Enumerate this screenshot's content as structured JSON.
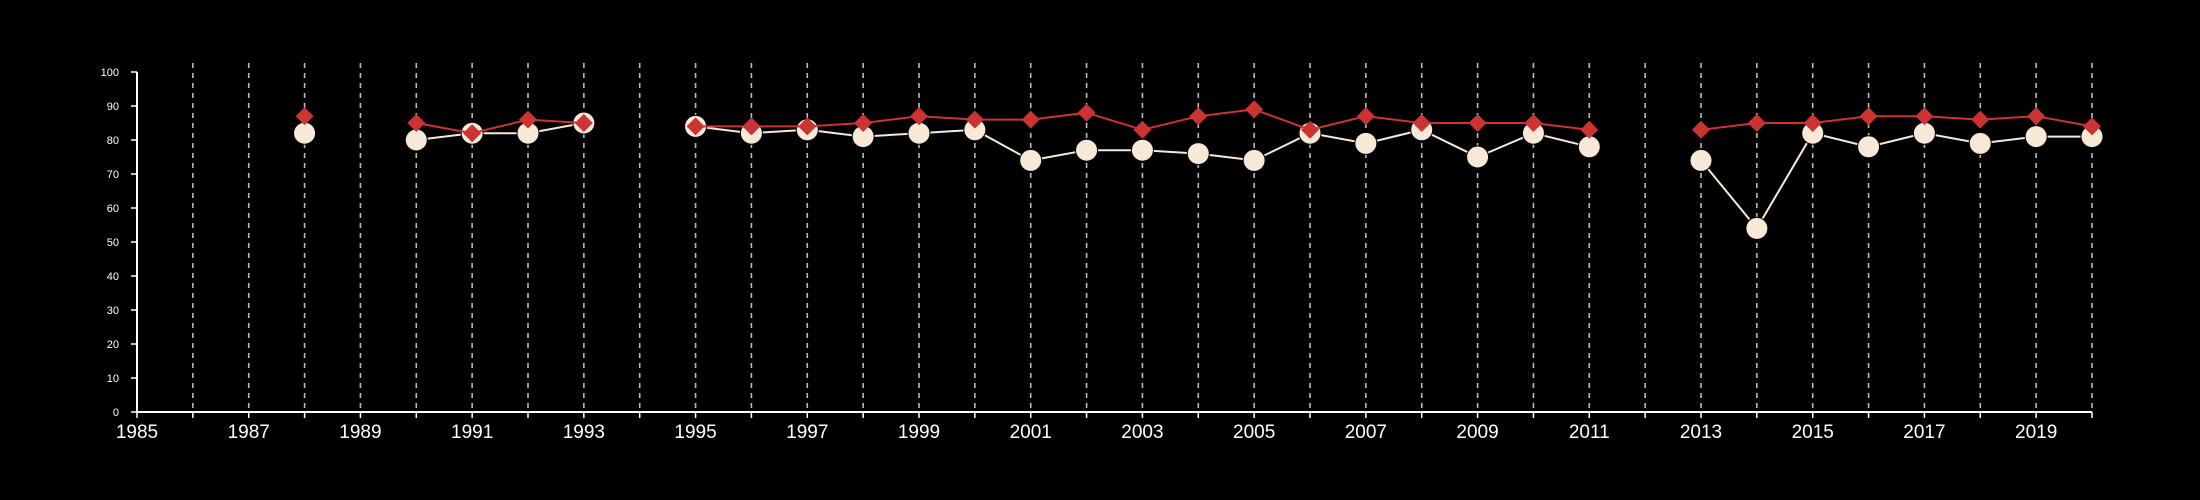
{
  "colors": {
    "background": "#000000",
    "axis": "#ffffff",
    "grid": "#bbbbbb",
    "series_light": "#f7e8d8",
    "series_red": "#cc3333"
  },
  "chart_data": {
    "type": "line",
    "title": "",
    "xlabel": "",
    "ylabel": "",
    "xlim": [
      1985,
      2020
    ],
    "ylim": [
      0,
      100
    ],
    "x_ticks": [
      1985,
      1987,
      1989,
      1991,
      1993,
      1995,
      1997,
      1999,
      2001,
      2003,
      2005,
      2007,
      2009,
      2011,
      2013,
      2015,
      2017,
      2019
    ],
    "y_ticks": [
      0,
      10,
      20,
      30,
      40,
      50,
      60,
      70,
      80,
      90,
      100
    ],
    "grid": "vertical dashed lines at every year",
    "legend": "none",
    "series": [
      {
        "marker": "circle",
        "color": "#f7e8d8",
        "points": [
          [
            1988,
            82
          ],
          [
            1990,
            80
          ],
          [
            1991,
            82
          ],
          [
            1992,
            82
          ],
          [
            1993,
            85
          ],
          [
            1995,
            84
          ],
          [
            1996,
            82
          ],
          [
            1997,
            83
          ],
          [
            1998,
            81
          ],
          [
            1999,
            82
          ],
          [
            2000,
            83
          ],
          [
            2001,
            74
          ],
          [
            2002,
            77
          ],
          [
            2003,
            77
          ],
          [
            2004,
            76
          ],
          [
            2005,
            74
          ],
          [
            2006,
            82
          ],
          [
            2007,
            79
          ],
          [
            2008,
            83
          ],
          [
            2009,
            75
          ],
          [
            2010,
            82
          ],
          [
            2011,
            78
          ],
          [
            2013,
            74
          ],
          [
            2014,
            54
          ],
          [
            2015,
            82
          ],
          [
            2016,
            78
          ],
          [
            2017,
            82
          ],
          [
            2018,
            79
          ],
          [
            2019,
            81
          ],
          [
            2020,
            81
          ]
        ]
      },
      {
        "marker": "diamond",
        "color": "#cc3333",
        "points": [
          [
            1988,
            87
          ],
          [
            1990,
            85
          ],
          [
            1991,
            82
          ],
          [
            1992,
            86
          ],
          [
            1993,
            85
          ],
          [
            1995,
            84
          ],
          [
            1996,
            84
          ],
          [
            1997,
            84
          ],
          [
            1998,
            85
          ],
          [
            1999,
            87
          ],
          [
            2000,
            86
          ],
          [
            2001,
            86
          ],
          [
            2002,
            88
          ],
          [
            2003,
            83
          ],
          [
            2004,
            87
          ],
          [
            2005,
            89
          ],
          [
            2006,
            83
          ],
          [
            2007,
            87
          ],
          [
            2008,
            85
          ],
          [
            2009,
            85
          ],
          [
            2010,
            85
          ],
          [
            2011,
            83
          ],
          [
            2013,
            83
          ],
          [
            2014,
            85
          ],
          [
            2015,
            85
          ],
          [
            2016,
            87
          ],
          [
            2017,
            87
          ],
          [
            2018,
            86
          ],
          [
            2019,
            87
          ],
          [
            2020,
            84
          ]
        ]
      }
    ]
  }
}
